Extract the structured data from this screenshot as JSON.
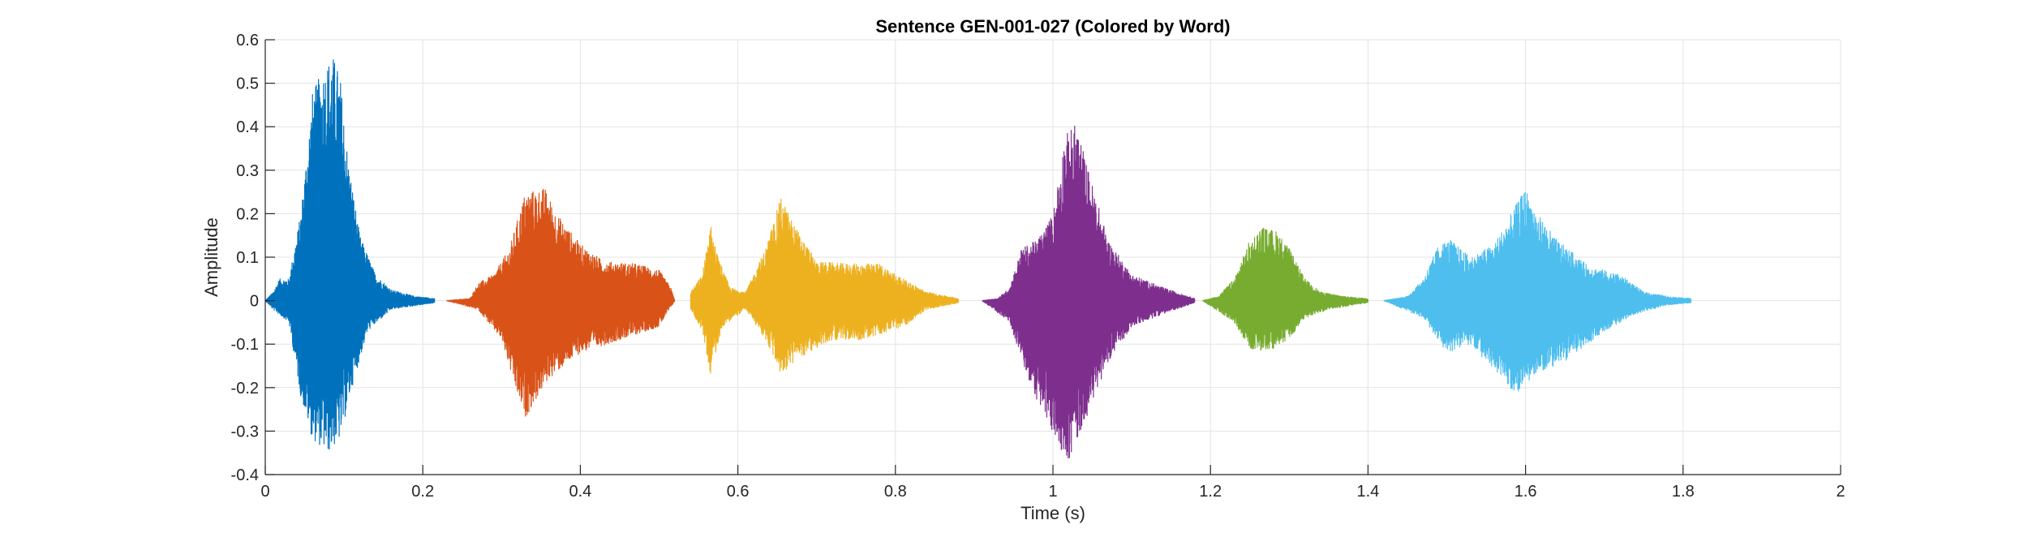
{
  "chart_data": {
    "type": "line",
    "title": "Sentence GEN-001-027 (Colored by Word)",
    "xlabel": "Time (s)",
    "ylabel": "Amplitude",
    "xlim": [
      0,
      2
    ],
    "ylim": [
      -0.4,
      0.6
    ],
    "x_ticks": [
      0,
      0.2,
      0.4,
      0.6,
      0.8,
      1,
      1.2,
      1.4,
      1.6,
      1.8,
      2
    ],
    "x_tick_labels": [
      "0",
      "0.2",
      "0.4",
      "0.6",
      "0.8",
      "1",
      "1.2",
      "1.4",
      "1.6",
      "1.8",
      "2"
    ],
    "y_ticks": [
      -0.4,
      -0.3,
      -0.2,
      -0.1,
      0,
      0.1,
      0.2,
      0.3,
      0.4,
      0.5,
      0.6
    ],
    "y_tick_labels": [
      "-0.4",
      "-0.3",
      "-0.2",
      "-0.1",
      "0",
      "0.1",
      "0.2",
      "0.3",
      "0.4",
      "0.5",
      "0.6"
    ],
    "grid": true,
    "legend": "none",
    "series": [
      {
        "color": "#0072BD",
        "t_start": 0.0,
        "t_end": 0.215,
        "envelope": [
          [
            0.0,
            0.0
          ],
          [
            0.01,
            0.02
          ],
          [
            0.018,
            0.05
          ],
          [
            0.03,
            0.05
          ],
          [
            0.045,
            0.2
          ],
          [
            0.06,
            0.48
          ],
          [
            0.075,
            0.54
          ],
          [
            0.085,
            0.57
          ],
          [
            0.095,
            0.52
          ],
          [
            0.105,
            0.33
          ],
          [
            0.12,
            0.15
          ],
          [
            0.14,
            0.06
          ],
          [
            0.16,
            0.025
          ],
          [
            0.19,
            0.01
          ],
          [
            0.215,
            0.005
          ]
        ],
        "envelope_neg": [
          [
            0.0,
            0.0
          ],
          [
            0.01,
            0.02
          ],
          [
            0.03,
            0.05
          ],
          [
            0.045,
            0.22
          ],
          [
            0.06,
            0.32
          ],
          [
            0.08,
            0.35
          ],
          [
            0.095,
            0.32
          ],
          [
            0.11,
            0.2
          ],
          [
            0.13,
            0.07
          ],
          [
            0.16,
            0.02
          ],
          [
            0.215,
            0.005
          ]
        ]
      },
      {
        "color": "#D95319",
        "t_start": 0.23,
        "t_end": 0.52,
        "envelope": [
          [
            0.23,
            0.0
          ],
          [
            0.26,
            0.005
          ],
          [
            0.27,
            0.04
          ],
          [
            0.29,
            0.06
          ],
          [
            0.31,
            0.12
          ],
          [
            0.33,
            0.25
          ],
          [
            0.355,
            0.26
          ],
          [
            0.37,
            0.2
          ],
          [
            0.4,
            0.13
          ],
          [
            0.43,
            0.09
          ],
          [
            0.47,
            0.085
          ],
          [
            0.5,
            0.07
          ],
          [
            0.515,
            0.03
          ],
          [
            0.52,
            0.0
          ]
        ],
        "envelope_neg": [
          [
            0.23,
            0.0
          ],
          [
            0.27,
            0.02
          ],
          [
            0.3,
            0.09
          ],
          [
            0.32,
            0.22
          ],
          [
            0.33,
            0.27
          ],
          [
            0.36,
            0.18
          ],
          [
            0.4,
            0.12
          ],
          [
            0.45,
            0.09
          ],
          [
            0.5,
            0.06
          ],
          [
            0.52,
            0.0
          ]
        ]
      },
      {
        "color": "#EDB120",
        "t_start": 0.54,
        "t_end": 0.88,
        "envelope": [
          [
            0.54,
            0.02
          ],
          [
            0.555,
            0.06
          ],
          [
            0.565,
            0.18
          ],
          [
            0.575,
            0.1
          ],
          [
            0.59,
            0.03
          ],
          [
            0.61,
            0.02
          ],
          [
            0.635,
            0.12
          ],
          [
            0.655,
            0.24
          ],
          [
            0.67,
            0.18
          ],
          [
            0.7,
            0.09
          ],
          [
            0.74,
            0.085
          ],
          [
            0.78,
            0.085
          ],
          [
            0.81,
            0.05
          ],
          [
            0.84,
            0.02
          ],
          [
            0.88,
            0.005
          ]
        ],
        "envelope_neg": [
          [
            0.54,
            0.02
          ],
          [
            0.555,
            0.07
          ],
          [
            0.565,
            0.17
          ],
          [
            0.58,
            0.06
          ],
          [
            0.61,
            0.02
          ],
          [
            0.635,
            0.09
          ],
          [
            0.655,
            0.17
          ],
          [
            0.68,
            0.13
          ],
          [
            0.72,
            0.09
          ],
          [
            0.76,
            0.09
          ],
          [
            0.81,
            0.06
          ],
          [
            0.84,
            0.02
          ],
          [
            0.88,
            0.005
          ]
        ]
      },
      {
        "color": "#7E2F8E",
        "t_start": 0.91,
        "t_end": 1.18,
        "envelope": [
          [
            0.91,
            0.0
          ],
          [
            0.93,
            0.005
          ],
          [
            0.945,
            0.03
          ],
          [
            0.96,
            0.12
          ],
          [
            0.98,
            0.14
          ],
          [
            1.0,
            0.2
          ],
          [
            1.015,
            0.38
          ],
          [
            1.03,
            0.41
          ],
          [
            1.045,
            0.3
          ],
          [
            1.07,
            0.14
          ],
          [
            1.1,
            0.06
          ],
          [
            1.14,
            0.03
          ],
          [
            1.18,
            0.005
          ]
        ],
        "envelope_neg": [
          [
            0.91,
            0.0
          ],
          [
            0.945,
            0.05
          ],
          [
            0.97,
            0.19
          ],
          [
            1.0,
            0.31
          ],
          [
            1.02,
            0.37
          ],
          [
            1.04,
            0.28
          ],
          [
            1.07,
            0.14
          ],
          [
            1.1,
            0.06
          ],
          [
            1.14,
            0.03
          ],
          [
            1.18,
            0.005
          ]
        ]
      },
      {
        "color": "#77AC30",
        "t_start": 1.19,
        "t_end": 1.4,
        "envelope": [
          [
            1.19,
            0.0
          ],
          [
            1.21,
            0.01
          ],
          [
            1.23,
            0.05
          ],
          [
            1.25,
            0.14
          ],
          [
            1.265,
            0.17
          ],
          [
            1.285,
            0.16
          ],
          [
            1.3,
            0.12
          ],
          [
            1.32,
            0.05
          ],
          [
            1.34,
            0.02
          ],
          [
            1.37,
            0.01
          ],
          [
            1.4,
            0.005
          ]
        ],
        "envelope_neg": [
          [
            1.19,
            0.0
          ],
          [
            1.23,
            0.05
          ],
          [
            1.25,
            0.11
          ],
          [
            1.27,
            0.12
          ],
          [
            1.3,
            0.09
          ],
          [
            1.32,
            0.04
          ],
          [
            1.35,
            0.02
          ],
          [
            1.4,
            0.005
          ]
        ]
      },
      {
        "color": "#4DBEEE",
        "t_start": 1.42,
        "t_end": 1.81,
        "envelope": [
          [
            1.42,
            0.0
          ],
          [
            1.45,
            0.01
          ],
          [
            1.47,
            0.05
          ],
          [
            1.49,
            0.13
          ],
          [
            1.505,
            0.14
          ],
          [
            1.53,
            0.1
          ],
          [
            1.56,
            0.13
          ],
          [
            1.585,
            0.21
          ],
          [
            1.6,
            0.26
          ],
          [
            1.615,
            0.2
          ],
          [
            1.64,
            0.14
          ],
          [
            1.68,
            0.08
          ],
          [
            1.72,
            0.06
          ],
          [
            1.75,
            0.02
          ],
          [
            1.78,
            0.01
          ],
          [
            1.81,
            0.005
          ]
        ],
        "envelope_neg": [
          [
            1.42,
            0.0
          ],
          [
            1.47,
            0.04
          ],
          [
            1.5,
            0.12
          ],
          [
            1.53,
            0.1
          ],
          [
            1.56,
            0.16
          ],
          [
            1.59,
            0.22
          ],
          [
            1.61,
            0.17
          ],
          [
            1.65,
            0.14
          ],
          [
            1.7,
            0.07
          ],
          [
            1.74,
            0.03
          ],
          [
            1.78,
            0.01
          ],
          [
            1.81,
            0.005
          ]
        ]
      }
    ]
  }
}
